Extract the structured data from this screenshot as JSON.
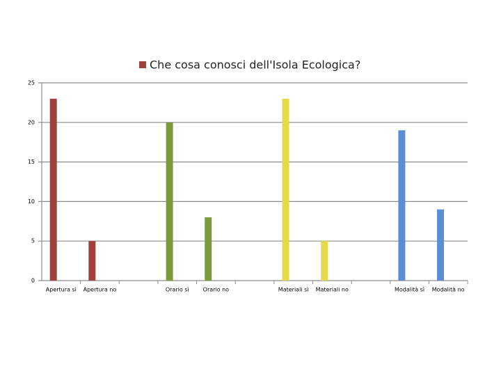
{
  "chart_data": {
    "type": "bar",
    "categories": [
      "Apertura sì",
      "Apertura no",
      null,
      "Orario sì",
      "Orario no",
      null,
      "Materiali sì",
      "Materiali no",
      null,
      "Modalità sì",
      "Modalità no"
    ],
    "series": [
      {
        "name": "Che cosa conosci dell'Isola Ecologica?",
        "color": "#a0413e",
        "values": [
          23,
          5,
          null,
          20,
          8,
          null,
          23,
          5,
          null,
          19,
          9
        ],
        "bar_colors": [
          "#a0413e",
          "#a0413e",
          null,
          "#7a9a3c",
          "#7a9a3c",
          null,
          "#e6da4a",
          "#e6da4a",
          null,
          "#5a8fd6",
          "#5a8fd6"
        ]
      }
    ],
    "ylim": [
      0,
      25
    ],
    "yticks": [
      0,
      5,
      10,
      15,
      20,
      25
    ],
    "grid": true,
    "legend": "top"
  }
}
